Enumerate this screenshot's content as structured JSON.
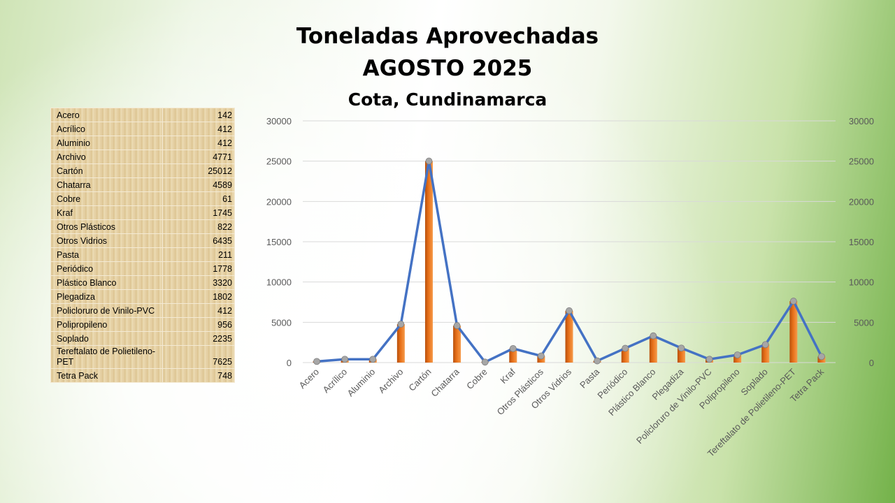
{
  "title_line1": "Toneladas Aprovechadas",
  "title_line2": "AGOSTO 2025",
  "subtitle": "Cota, Cundinamarca",
  "colors": {
    "bar": "#e8711a",
    "line": "#4472c4",
    "marker": "#a6a6a6"
  },
  "table": [
    {
      "name": "Acero",
      "value": "142"
    },
    {
      "name": "Acrílico",
      "value": "412"
    },
    {
      "name": "Aluminio",
      "value": "412"
    },
    {
      "name": "Archivo",
      "value": "4771"
    },
    {
      "name": "Cartón",
      "value": "25012"
    },
    {
      "name": "Chatarra",
      "value": "4589"
    },
    {
      "name": "Cobre",
      "value": "61"
    },
    {
      "name": "Kraf",
      "value": "1745"
    },
    {
      "name": "Otros Plásticos",
      "value": "822"
    },
    {
      "name": "Otros Vidrios",
      "value": "6435"
    },
    {
      "name": "Pasta",
      "value": "211"
    },
    {
      "name": "Periódico",
      "value": "1778"
    },
    {
      "name": "Plástico Blanco",
      "value": "3320"
    },
    {
      "name": "Plegadiza",
      "value": "1802"
    },
    {
      "name": "Policloruro de Vinilo-PVC",
      "value": "412"
    },
    {
      "name": "Polipropileno",
      "value": "956"
    },
    {
      "name": "Soplado",
      "value": "2235"
    },
    {
      "name": "Tereftalato de Polietileno-PET",
      "value": "7625"
    },
    {
      "name": "Tetra Pack",
      "value": "748"
    }
  ],
  "chart_data": {
    "type": "bar",
    "combo": "bar+line",
    "categories": [
      "Acero",
      "Acrílico",
      "Aluminio",
      "Archivo",
      "Cartón",
      "Chatarra",
      "Cobre",
      "Kraf",
      "Otros Plásticos",
      "Otros Vidrios",
      "Pasta",
      "Periódico",
      "Plástico Blanco",
      "Plegadiza",
      "Policloruro de Vinilo-PVC",
      "Polipropileno",
      "Soplado",
      "Tereftalato de Polietileno-PET",
      "Tetra Pack"
    ],
    "series": [
      {
        "type": "bar",
        "values": [
          142,
          412,
          412,
          4771,
          25012,
          4589,
          61,
          1745,
          822,
          6435,
          211,
          1778,
          3320,
          1802,
          412,
          956,
          2235,
          7625,
          748
        ]
      },
      {
        "type": "line",
        "axis": "secondary",
        "values": [
          142,
          412,
          412,
          4771,
          25012,
          4589,
          61,
          1745,
          822,
          6435,
          211,
          1778,
          3320,
          1802,
          412,
          956,
          2235,
          7625,
          748
        ]
      }
    ],
    "ylim": [
      0,
      30000
    ],
    "y2lim": [
      0,
      30000
    ],
    "yticks": [
      0,
      5000,
      10000,
      15000,
      20000,
      25000,
      30000
    ],
    "grid": true,
    "legend": "none"
  }
}
